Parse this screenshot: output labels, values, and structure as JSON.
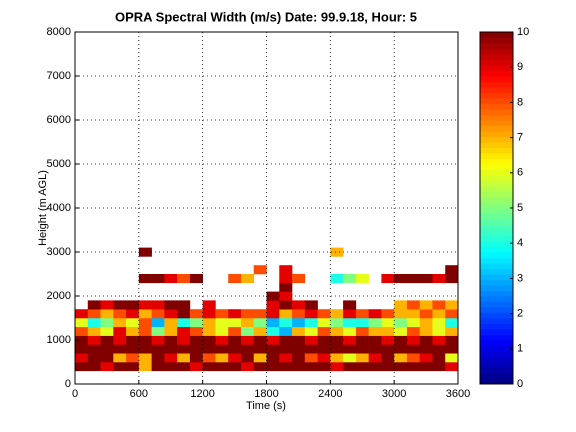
{
  "chart_data": {
    "type": "heatmap",
    "title": "OPRA Spectral Width (m/s)  Date: 99.9.18, Hour: 5",
    "x_label": "Time (s)",
    "y_label": "Height (m AGL)",
    "x_edges": [
      0,
      120,
      240,
      360,
      480,
      600,
      720,
      840,
      960,
      1080,
      1200,
      1320,
      1440,
      1560,
      1680,
      1800,
      1920,
      2040,
      2160,
      2280,
      2400,
      2520,
      2640,
      2760,
      2880,
      3000,
      3120,
      3240,
      3360,
      3480,
      3600
    ],
    "y_edges": [
      300,
      500,
      700,
      900,
      1100,
      1300,
      1500,
      1700,
      1900,
      2100,
      2300,
      2500,
      2700,
      2900,
      3100
    ],
    "z": [
      [
        10,
        10,
        9,
        10,
        10,
        7,
        10,
        10,
        10,
        9,
        10,
        10,
        10,
        9,
        10,
        10,
        10,
        10,
        10,
        10,
        9,
        10,
        10,
        10,
        10,
        10,
        10,
        10,
        10,
        9
      ],
      [
        9,
        10,
        10,
        7,
        8,
        7,
        10,
        9,
        7,
        10,
        8,
        7,
        9,
        10,
        7,
        10,
        9,
        10,
        8,
        9,
        7,
        6,
        7,
        9,
        10,
        7,
        8,
        9,
        10,
        6
      ],
      [
        10,
        10,
        10,
        10,
        10,
        10,
        10,
        10,
        10,
        10,
        10,
        10,
        10,
        10,
        10,
        10,
        10,
        10,
        10,
        10,
        10,
        10,
        10,
        10,
        10,
        10,
        10,
        10,
        10,
        10
      ],
      [
        10,
        9,
        10,
        9,
        10,
        10,
        9,
        10,
        9,
        10,
        10,
        9,
        10,
        9,
        10,
        9,
        10,
        10,
        9,
        10,
        10,
        9,
        10,
        10,
        9,
        10,
        9,
        10,
        9,
        10
      ],
      [
        8,
        7,
        6,
        9,
        7,
        8,
        5,
        7,
        9,
        8,
        7,
        6,
        8,
        5,
        7,
        4,
        3,
        7,
        6,
        8,
        7,
        6,
        8,
        7,
        7,
        6,
        8,
        7,
        6,
        7
      ],
      [
        6,
        4,
        5,
        7,
        6,
        8,
        3,
        7,
        4,
        5,
        7,
        6,
        6,
        7,
        5,
        3,
        4,
        3,
        4,
        6,
        5,
        4,
        4,
        5,
        6,
        5,
        6,
        7,
        6,
        4
      ],
      [
        9,
        8,
        7,
        8,
        9,
        7,
        8,
        9,
        10,
        8,
        9,
        8,
        9,
        8,
        8,
        9,
        7,
        8,
        9,
        8,
        7,
        9,
        8,
        9,
        8,
        7,
        7,
        8,
        7,
        8
      ],
      [
        null,
        10,
        9,
        10,
        10,
        9,
        9,
        10,
        10,
        null,
        9,
        null,
        null,
        null,
        null,
        9,
        10,
        9,
        10,
        null,
        null,
        10,
        null,
        null,
        null,
        7,
        8,
        7,
        8,
        7
      ],
      [
        null,
        null,
        null,
        null,
        null,
        null,
        null,
        null,
        null,
        null,
        null,
        null,
        null,
        null,
        null,
        10,
        9,
        null,
        null,
        null,
        null,
        null,
        null,
        null,
        null,
        null,
        null,
        null,
        null,
        null
      ],
      [
        null,
        null,
        null,
        null,
        null,
        null,
        null,
        null,
        null,
        null,
        null,
        null,
        null,
        null,
        null,
        null,
        10,
        null,
        null,
        null,
        null,
        null,
        null,
        null,
        null,
        null,
        null,
        null,
        null,
        null
      ],
      [
        null,
        null,
        null,
        null,
        null,
        10,
        10,
        9,
        8,
        10,
        null,
        null,
        8,
        7,
        null,
        null,
        9,
        8,
        null,
        null,
        4,
        5,
        6,
        null,
        9,
        10,
        10,
        10,
        9,
        10
      ],
      [
        null,
        null,
        null,
        null,
        null,
        null,
        null,
        null,
        null,
        null,
        null,
        null,
        null,
        null,
        8,
        null,
        9,
        null,
        null,
        null,
        null,
        null,
        null,
        null,
        null,
        null,
        null,
        null,
        null,
        10
      ],
      [
        null,
        null,
        null,
        null,
        null,
        null,
        null,
        null,
        null,
        null,
        null,
        null,
        null,
        null,
        null,
        null,
        null,
        null,
        null,
        null,
        null,
        null,
        null,
        null,
        null,
        null,
        null,
        null,
        null,
        null
      ],
      [
        null,
        null,
        null,
        null,
        null,
        10,
        null,
        null,
        null,
        null,
        null,
        null,
        null,
        null,
        null,
        null,
        null,
        null,
        null,
        null,
        7,
        null,
        null,
        null,
        null,
        null,
        null,
        null,
        null,
        null
      ]
    ],
    "colormap": "jet",
    "clim": [
      0,
      10
    ],
    "cticks": [
      0,
      1,
      2,
      3,
      4,
      5,
      6,
      7,
      8,
      9,
      10
    ],
    "xlim": [
      0,
      3600
    ],
    "xticks": [
      0,
      600,
      1200,
      1800,
      2400,
      3000,
      3600
    ],
    "ylim": [
      0,
      8000
    ],
    "yticks": [
      0,
      1000,
      2000,
      3000,
      4000,
      5000,
      6000,
      7000,
      8000
    ],
    "grid": true
  }
}
